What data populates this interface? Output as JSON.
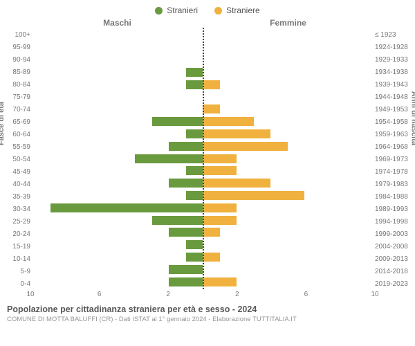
{
  "legend": {
    "male": {
      "label": "Stranieri",
      "color": "#6a9a3e"
    },
    "female": {
      "label": "Straniere",
      "color": "#f0b13f"
    }
  },
  "headers": {
    "male": "Maschi",
    "female": "Femmine"
  },
  "axis_labels": {
    "left": "Fasce di età",
    "right": "Anni di nascita"
  },
  "xaxis": {
    "max": 10,
    "ticks": [
      10,
      6,
      2,
      2,
      6,
      10
    ]
  },
  "rows": [
    {
      "age": "100+",
      "birth": "≤ 1923",
      "m": 0,
      "f": 0
    },
    {
      "age": "95-99",
      "birth": "1924-1928",
      "m": 0,
      "f": 0
    },
    {
      "age": "90-94",
      "birth": "1929-1933",
      "m": 0,
      "f": 0
    },
    {
      "age": "85-89",
      "birth": "1934-1938",
      "m": 1,
      "f": 0
    },
    {
      "age": "80-84",
      "birth": "1939-1943",
      "m": 1,
      "f": 1
    },
    {
      "age": "75-79",
      "birth": "1944-1948",
      "m": 0,
      "f": 0
    },
    {
      "age": "70-74",
      "birth": "1949-1953",
      "m": 0,
      "f": 1
    },
    {
      "age": "65-69",
      "birth": "1954-1958",
      "m": 3,
      "f": 3
    },
    {
      "age": "60-64",
      "birth": "1959-1963",
      "m": 1,
      "f": 4
    },
    {
      "age": "55-59",
      "birth": "1964-1968",
      "m": 2,
      "f": 5
    },
    {
      "age": "50-54",
      "birth": "1969-1973",
      "m": 4,
      "f": 2
    },
    {
      "age": "45-49",
      "birth": "1974-1978",
      "m": 1,
      "f": 2
    },
    {
      "age": "40-44",
      "birth": "1979-1983",
      "m": 2,
      "f": 4
    },
    {
      "age": "35-39",
      "birth": "1984-1988",
      "m": 1,
      "f": 6
    },
    {
      "age": "30-34",
      "birth": "1989-1993",
      "m": 9,
      "f": 2
    },
    {
      "age": "25-29",
      "birth": "1994-1998",
      "m": 3,
      "f": 2
    },
    {
      "age": "20-24",
      "birth": "1999-2003",
      "m": 2,
      "f": 1
    },
    {
      "age": "15-19",
      "birth": "2004-2008",
      "m": 1,
      "f": 0
    },
    {
      "age": "10-14",
      "birth": "2009-2013",
      "m": 1,
      "f": 1
    },
    {
      "age": "5-9",
      "birth": "2014-2018",
      "m": 2,
      "f": 0
    },
    {
      "age": "0-4",
      "birth": "2019-2023",
      "m": 2,
      "f": 2
    }
  ],
  "colors": {
    "male_bar": "#6a9a3e",
    "female_bar": "#f0b13f",
    "grid": "#dddddd",
    "text": "#777777"
  },
  "footer": {
    "title": "Popolazione per cittadinanza straniera per età e sesso - 2024",
    "subtitle": "COMUNE DI MOTTA BALUFFI (CR) - Dati ISTAT al 1° gennaio 2024 - Elaborazione TUTTITALIA.IT"
  }
}
